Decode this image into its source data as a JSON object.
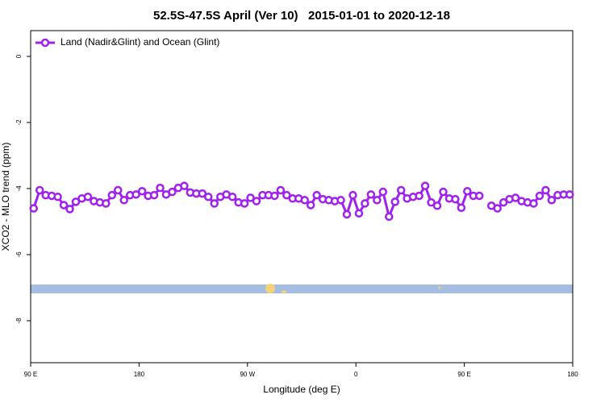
{
  "chart_data": {
    "type": "line",
    "title": "52.5S-47.5S April (Ver 10)   2015-01-01 to 2020-12-18",
    "x_label": "Longitude (deg E)",
    "y_label": "XCO2 - MLO trend (ppm)",
    "legend": "top-left",
    "xlim": [
      90,
      540
    ],
    "ylim": [
      -9.27,
      0.78
    ],
    "xticks": [
      {
        "value": 90,
        "label": "90 E"
      },
      180,
      {
        "value": 270,
        "label": "90 W"
      },
      {
        "value": 360,
        "label": "0"
      },
      {
        "value": 450,
        "label": "90 E"
      },
      {
        "value": 540,
        "label": "180"
      }
    ],
    "yticks": [
      0,
      -2,
      -4,
      -6,
      -8
    ],
    "x": [
      92.5,
      97.5,
      102.5,
      107.5,
      112.5,
      117.5,
      122.5,
      127.5,
      132.5,
      137.5,
      142.5,
      147.5,
      152.5,
      157.5,
      162.5,
      167.5,
      172.5,
      177.5,
      182.5,
      187.5,
      192.5,
      197.5,
      202.5,
      207.5,
      212.5,
      217.5,
      222.5,
      227.5,
      232.5,
      237.5,
      242.5,
      247.5,
      252.5,
      257.5,
      262.5,
      267.5,
      272.5,
      277.5,
      282.5,
      287.5,
      292.5,
      297.5,
      302.5,
      307.5,
      312.5,
      317.5,
      322.5,
      327.5,
      332.5,
      337.5,
      342.5,
      347.5,
      352.5,
      357.5,
      362.5,
      367.5,
      372.5,
      377.5,
      382.5,
      387.5,
      392.5,
      397.5,
      402.5,
      407.5,
      412.5,
      417.5,
      422.5,
      427.5,
      432.5,
      437.5,
      442.5,
      447.5,
      452.5,
      457.5,
      462.5,
      467.5,
      472.5,
      477.5,
      482.5,
      487.5,
      492.5,
      497.5,
      502.5,
      507.5,
      512.5,
      517.5,
      522.5,
      527.5,
      532.5,
      537.5
    ],
    "series": [
      {
        "name": "Land (Nadir&Glint) and Ocean (Glint)",
        "color": "#a020f0",
        "values": [
          -4.6,
          -4.05,
          -4.2,
          -4.22,
          -4.25,
          -4.5,
          -4.62,
          -4.4,
          -4.3,
          -4.25,
          -4.38,
          -4.42,
          -4.45,
          -4.2,
          -4.05,
          -4.35,
          -4.2,
          -4.18,
          -4.08,
          -4.22,
          -4.2,
          -3.98,
          -4.18,
          -4.1,
          -3.98,
          -3.92,
          -4.12,
          -4.15,
          -4.15,
          -4.25,
          -4.45,
          -4.25,
          -4.18,
          -4.25,
          -4.42,
          -4.45,
          -4.28,
          -4.38,
          -4.2,
          -4.2,
          -4.22,
          -4.05,
          -4.2,
          -4.3,
          -4.3,
          -4.35,
          -4.5,
          -4.2,
          -4.32,
          -4.35,
          -4.38,
          -4.35,
          -4.78,
          -4.2,
          -4.75,
          -4.45,
          -4.18,
          -4.35,
          -4.1,
          -4.85,
          -4.4,
          -4.05,
          -4.3,
          -4.25,
          -4.22,
          -3.92,
          -4.42,
          -4.52,
          -4.1,
          -4.3,
          -4.32,
          -4.58,
          -4.08,
          -4.22,
          -4.22,
          null,
          -4.52,
          -4.6,
          -4.42,
          -4.32,
          -4.28,
          -4.38,
          -4.42,
          -4.45,
          -4.22,
          -4.05,
          -4.35,
          -4.2,
          -4.18,
          -4.18
        ]
      }
    ]
  }
}
